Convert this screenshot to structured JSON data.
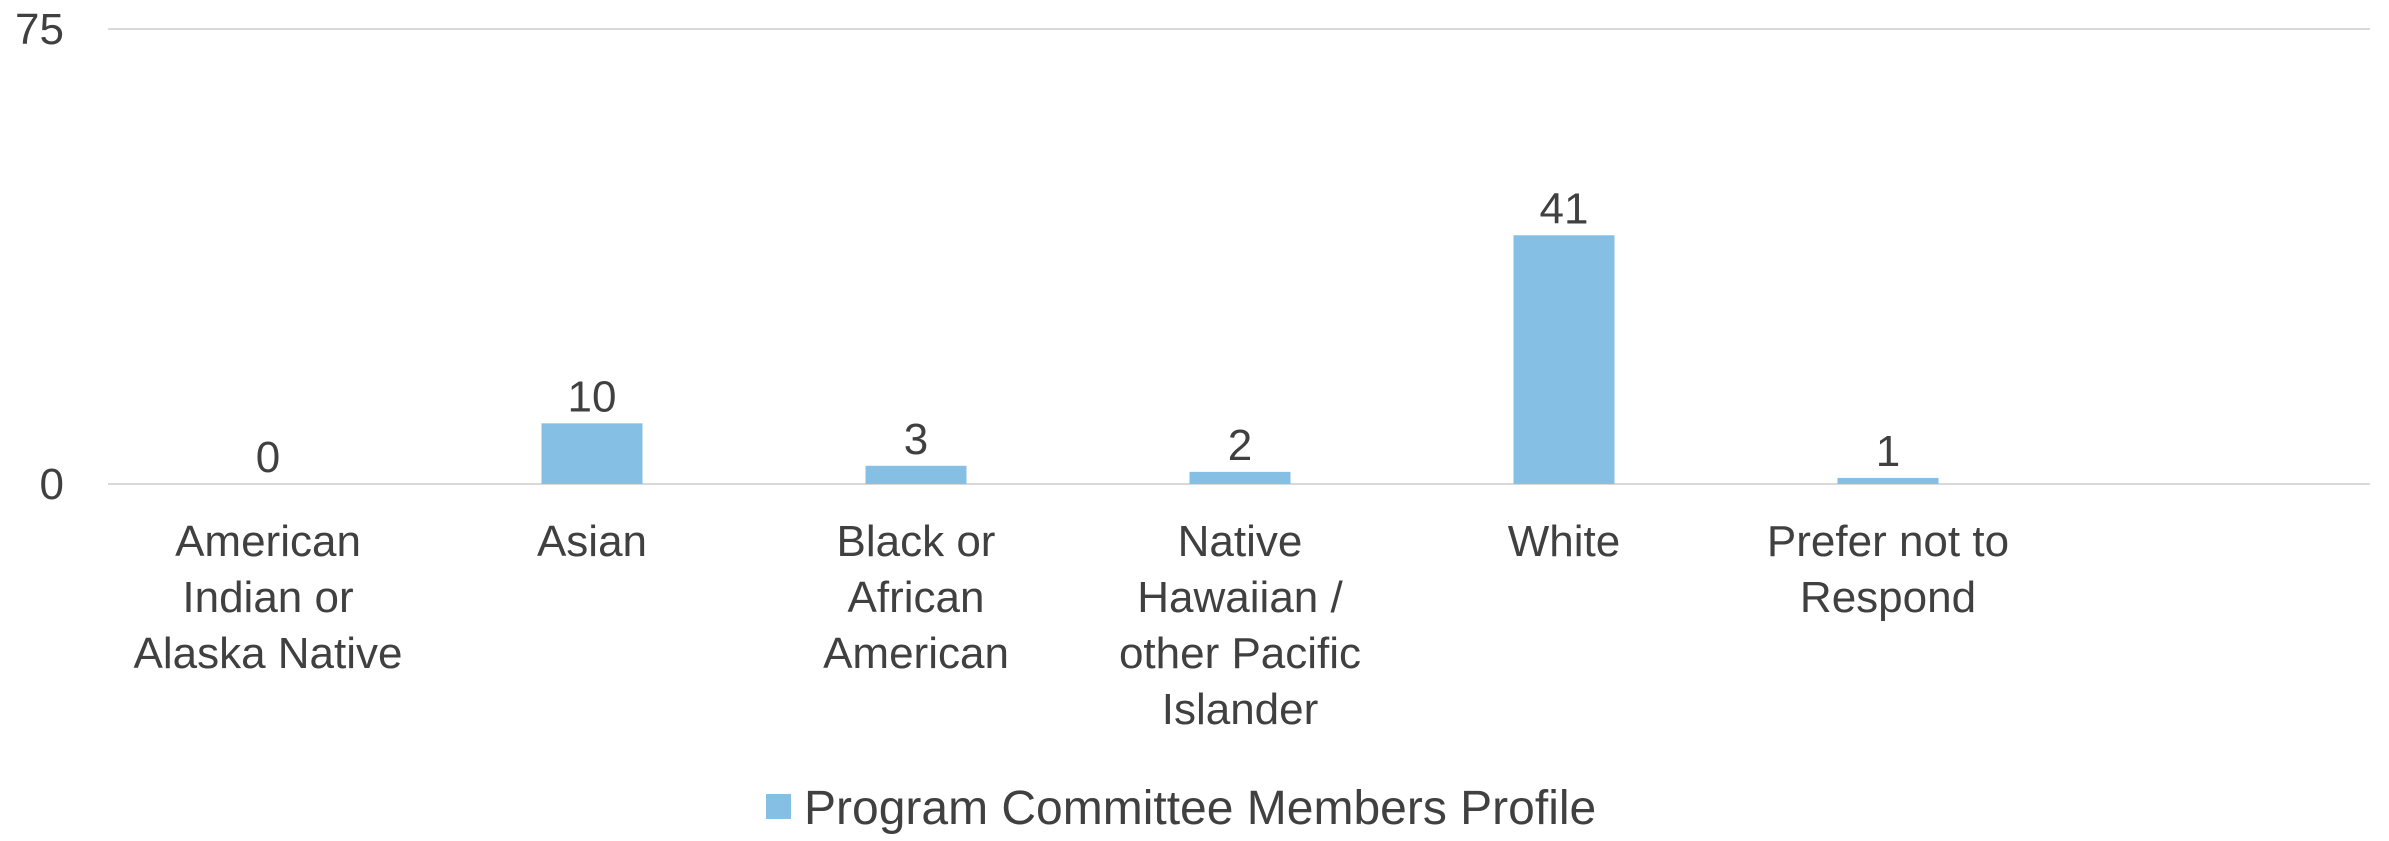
{
  "chart_data": {
    "type": "bar",
    "title": "",
    "xlabel": "",
    "ylabel": "",
    "categories": [
      [
        "American",
        "Indian or",
        "Alaska Native"
      ],
      [
        "Asian"
      ],
      [
        "Black   or",
        "African",
        "American"
      ],
      [
        "Native",
        "Hawaiian /",
        "other Pacific",
        "Islander"
      ],
      [
        "White"
      ],
      [
        "Prefer not to",
        "Respond"
      ]
    ],
    "series": [
      {
        "name": "Program Committee Members Profile",
        "values": [
          0,
          10,
          3,
          2,
          41,
          1
        ],
        "color": "#85C0E4"
      }
    ],
    "ylim": [
      0,
      75
    ],
    "yticks": [
      "0",
      "75"
    ],
    "grid": true,
    "data_labels": true,
    "legend_position": "bottom"
  }
}
